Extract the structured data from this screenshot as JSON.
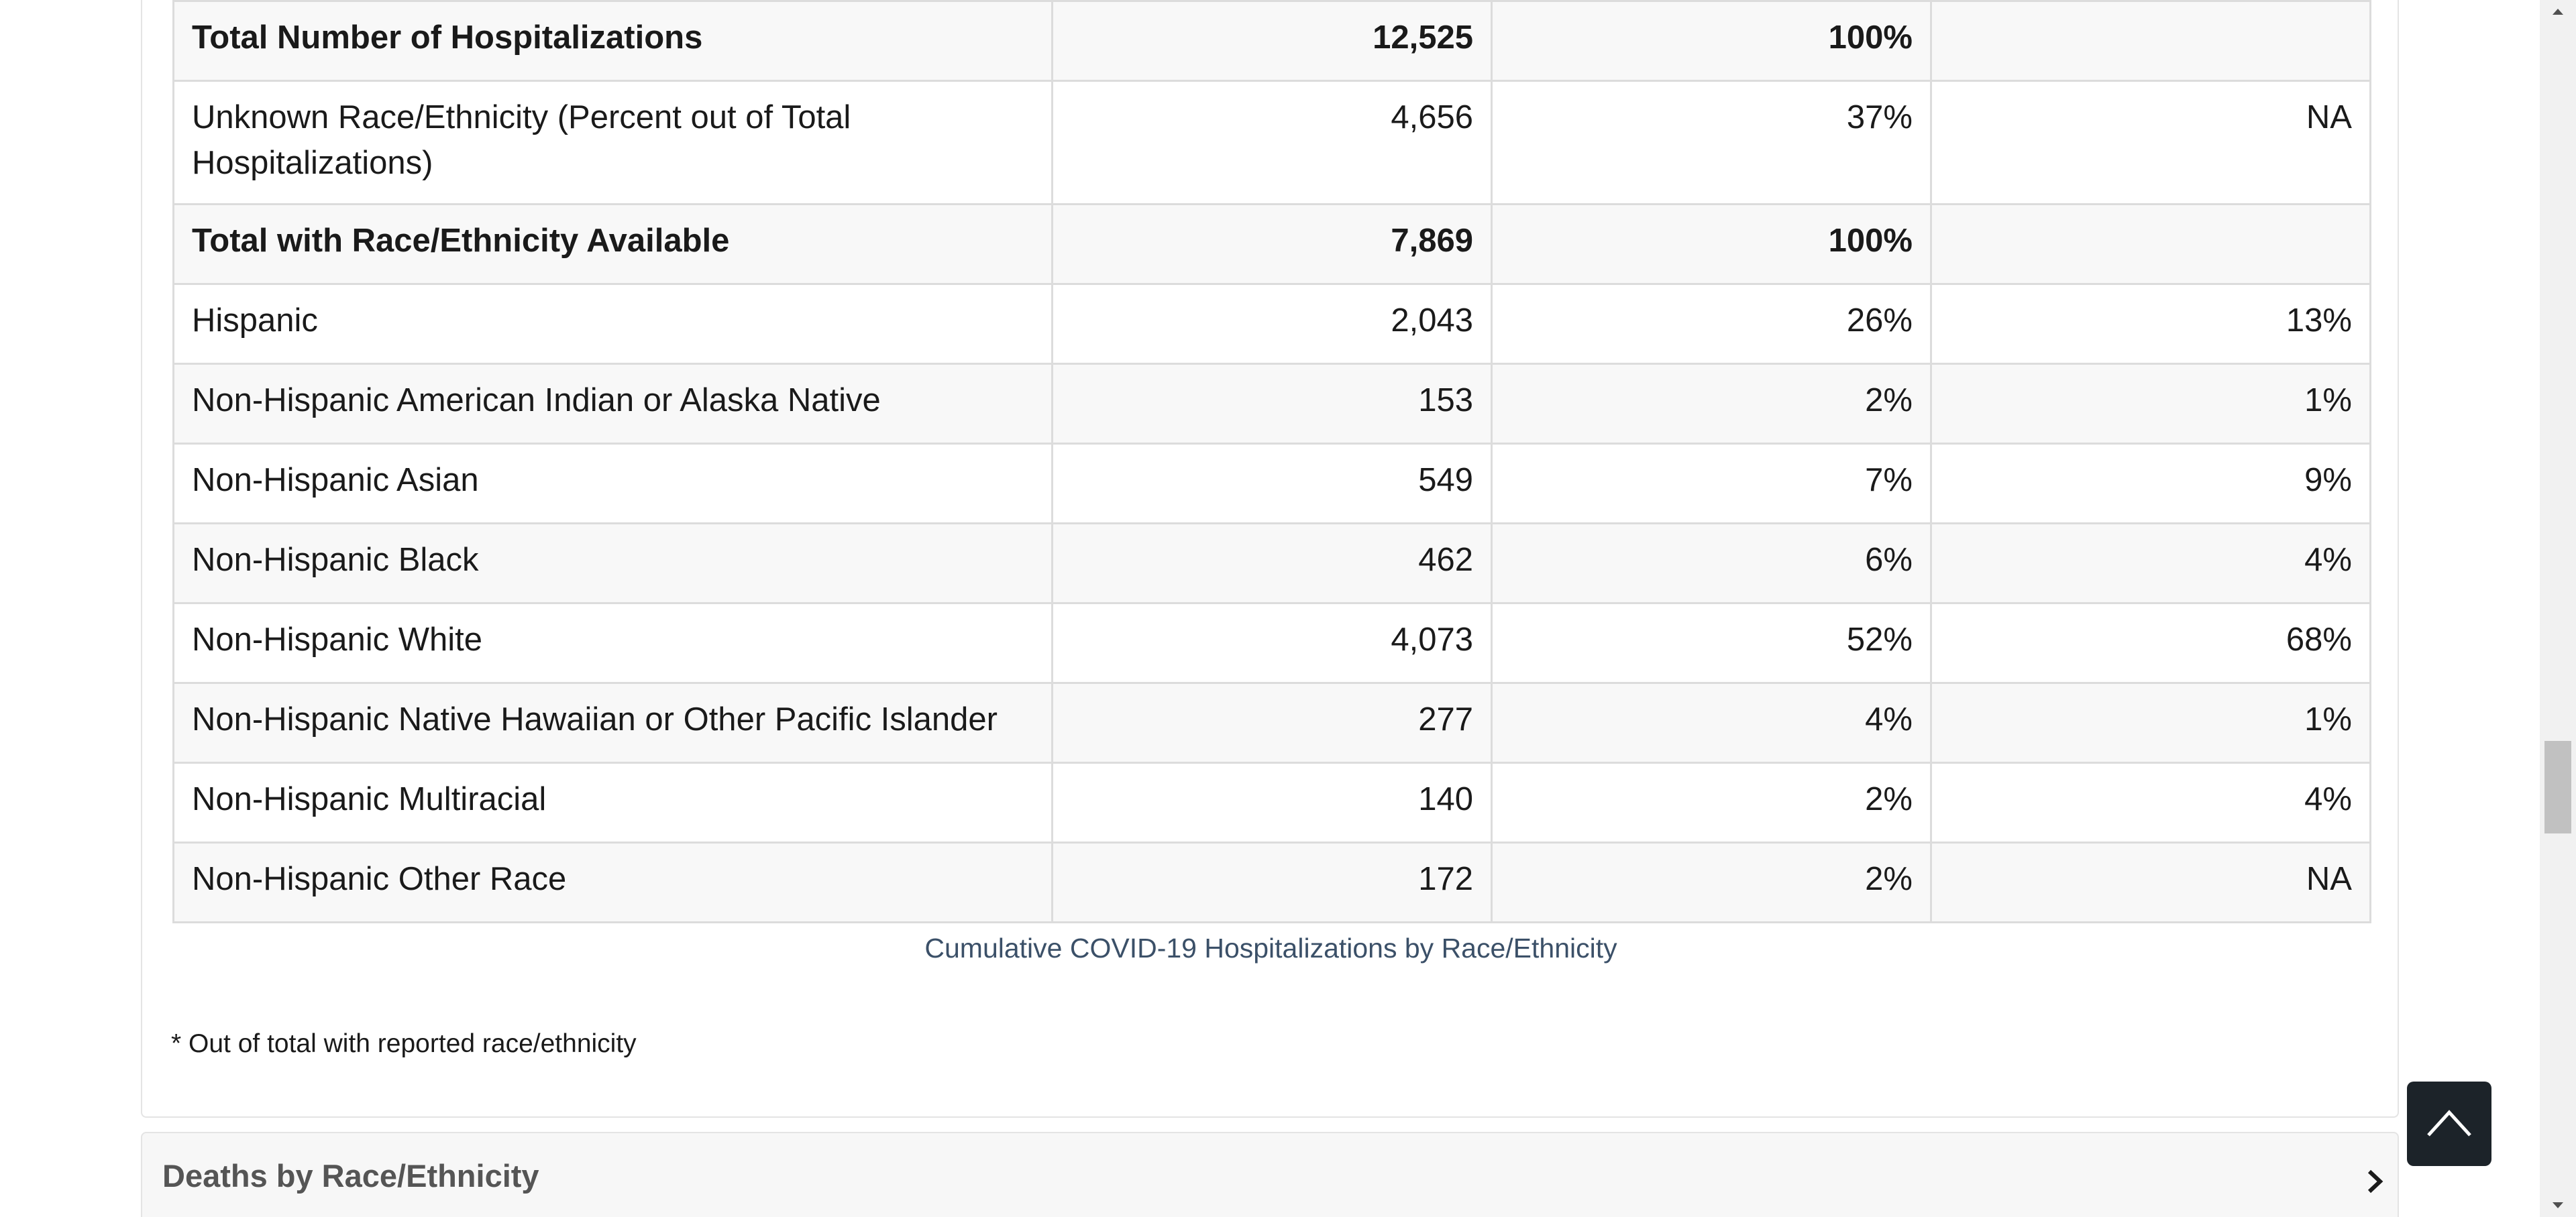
{
  "table": {
    "rows": [
      {
        "label": "Total Number of Hospitalizations",
        "count": "12,525",
        "percent": "100%",
        "population": ""
      },
      {
        "label": "Unknown Race/Ethnicity (Percent out of Total Hospitalizations)",
        "count": "4,656",
        "percent": "37%",
        "population": "NA"
      },
      {
        "label": "Total with Race/Ethnicity Available",
        "count": "7,869",
        "percent": "100%",
        "population": ""
      },
      {
        "label": "Hispanic",
        "count": "2,043",
        "percent": "26%",
        "population": "13%"
      },
      {
        "label": "Non-Hispanic American Indian or Alaska Native",
        "count": "153",
        "percent": "2%",
        "population": "1%"
      },
      {
        "label": "Non-Hispanic Asian",
        "count": "549",
        "percent": "7%",
        "population": "9%"
      },
      {
        "label": "Non-Hispanic Black",
        "count": "462",
        "percent": "6%",
        "population": "4%"
      },
      {
        "label": "Non-Hispanic White",
        "count": "4,073",
        "percent": "52%",
        "population": "68%"
      },
      {
        "label": "Non-Hispanic Native Hawaiian or Other Pacific Islander",
        "count": "277",
        "percent": "4%",
        "population": "1%"
      },
      {
        "label": "Non-Hispanic Multiracial",
        "count": "140",
        "percent": "2%",
        "population": "4%"
      },
      {
        "label": "Non-Hispanic Other Race",
        "count": "172",
        "percent": "2%",
        "population": "NA"
      }
    ],
    "caption": "Cumulative COVID-19 Hospitalizations by Race/Ethnicity"
  },
  "footnote": "* Out of total with reported race/ethnicity",
  "accordion": {
    "title": "Deaths by Race/Ethnicity",
    "icon": "chevron-right-icon"
  },
  "back_to_top": {
    "icon": "chevron-up-icon"
  },
  "colors": {
    "caption": "#3b5068",
    "top_button": "#1c2329",
    "row_stripe": "#f8f8f8"
  }
}
